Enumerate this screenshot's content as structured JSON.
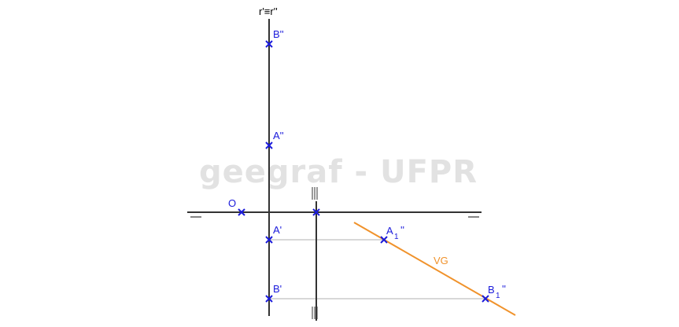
{
  "watermark": "geegraf - UFPR",
  "labels": {
    "line_r": "r'≡r''",
    "origin": "O",
    "B2": "B''",
    "A2": "A''",
    "A1": "A'",
    "B1": "B'",
    "A1_rot_base": "A",
    "A1_rot_sub": "1",
    "A1_rot_primes": "''",
    "B1_rot_base": "B",
    "B1_rot_sub": "1",
    "B1_rot_primes": "''",
    "vg": "VG",
    "ground_line_mark_left": "—",
    "ground_line_mark_right": "—",
    "aux_line_mark_top": "|||",
    "aux_line_mark_bottom": "|||"
  },
  "colors": {
    "construction": "#333333",
    "points": "#1a1adb",
    "labels": "#1a1adb",
    "true_size": "#f0922b",
    "projector": "#b0b0b0",
    "watermark": "#e2e2e2"
  }
}
